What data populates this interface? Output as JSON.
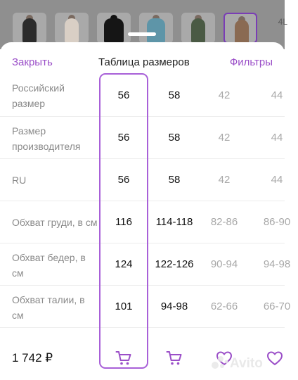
{
  "strip": {
    "text": "4L"
  },
  "header": {
    "close_label": "Закрыть",
    "title": "Таблица размеров",
    "filters_label": "Фильтры"
  },
  "rows": [
    {
      "label_line1": "Российский",
      "label_line2": "размер",
      "values": [
        "56",
        "58",
        "42",
        "44"
      ]
    },
    {
      "label_line1": "Размер",
      "label_line2": "производителя",
      "values": [
        "56",
        "58",
        "42",
        "44"
      ]
    },
    {
      "label_line1": "RU",
      "label_line2": "",
      "values": [
        "56",
        "58",
        "42",
        "44"
      ]
    },
    {
      "label_line1": "Обхват груди, в см",
      "label_line2": "",
      "values": [
        "116",
        "114-118",
        "82-86",
        "86-90"
      ]
    },
    {
      "label_line1": "Обхват бедер, в",
      "label_line2": "см",
      "values": [
        "124",
        "122-126",
        "90-94",
        "94-98"
      ]
    },
    {
      "label_line1": "Обхват талии, в",
      "label_line2": "см",
      "values": [
        "101",
        "94-98",
        "62-66",
        "66-70"
      ]
    }
  ],
  "footer": {
    "price": "1 742 ₽"
  },
  "colors": {
    "accent": "#9b4fc8",
    "highlight_border": "#a860d8"
  },
  "icons": [
    "cart-icon",
    "heart-icon"
  ]
}
